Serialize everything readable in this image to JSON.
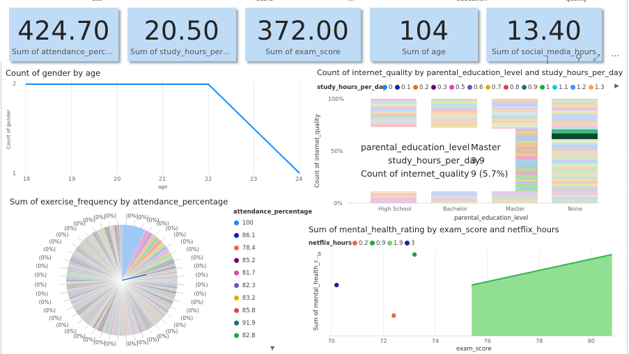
{
  "kpis": [
    {
      "value": "424.70",
      "label": "Sum of attendance_percenta..."
    },
    {
      "value": "20.50",
      "label": "Sum of study_hours_per_day"
    },
    {
      "value": "372.00",
      "label": "Sum of exam_score"
    },
    {
      "value": "104",
      "label": "Sum of age"
    },
    {
      "value": "13.40",
      "label": "Sum of social_media_hours"
    }
  ],
  "gender_chart": {
    "title": "Count of gender by age",
    "xlabel": "age",
    "ylabel": "Count of gender",
    "x_ticks": [
      "18",
      "19",
      "20",
      "21",
      "22",
      "23",
      "24"
    ],
    "y_ticks": [
      "2",
      "1"
    ]
  },
  "internet_chart": {
    "title": "Count of internet_quality by parental_education_level and study_hours_per_day",
    "legend_title": "study_hours_per_day",
    "legend": [
      {
        "label": "0",
        "color": "#118dff"
      },
      {
        "label": "0.1",
        "color": "#12239e"
      },
      {
        "label": "0.2",
        "color": "#e66c37"
      },
      {
        "label": "0.3",
        "color": "#6b007b"
      },
      {
        "label": "0.5",
        "color": "#e044a7"
      },
      {
        "label": "0.6",
        "color": "#744ec2"
      },
      {
        "label": "0.7",
        "color": "#d9b300"
      },
      {
        "label": "0.8",
        "color": "#d64550"
      },
      {
        "label": "0.9",
        "color": "#197278"
      },
      {
        "label": "1",
        "color": "#1aab40"
      },
      {
        "label": "1.1",
        "color": "#15c6f4"
      },
      {
        "label": "1.2",
        "color": "#4092ff"
      },
      {
        "label": "1.3",
        "color": "#ffa058"
      }
    ],
    "ylabel": "Count of internet_quality",
    "xlabel": "parental_education_level",
    "y_ticks": [
      "100%",
      "50%",
      "0%"
    ],
    "categories": [
      "High School",
      "Bachelor",
      "Master",
      "None"
    ],
    "tooltip": {
      "rows": [
        {
          "k": "parental_education_level",
          "v": "Master"
        },
        {
          "k": "study_hours_per_day",
          "v": "3.9"
        },
        {
          "k": "Count of internet_quality",
          "v": "9 (5.7%)"
        }
      ]
    }
  },
  "pie_chart": {
    "title": "Sum of exercise_frequency by attendance_percentage",
    "legend_title": "attendance_percentage",
    "slice_label": "(0%)",
    "legend": [
      {
        "label": "100",
        "color": "#118dff"
      },
      {
        "label": "86.1",
        "color": "#12239e"
      },
      {
        "label": "78.4",
        "color": "#e66c37"
      },
      {
        "label": "85.2",
        "color": "#6b007b"
      },
      {
        "label": "81.7",
        "color": "#e044a7"
      },
      {
        "label": "82.3",
        "color": "#744ec2"
      },
      {
        "label": "83.2",
        "color": "#d9b300"
      },
      {
        "label": "85.8",
        "color": "#d64550"
      },
      {
        "label": "91.9",
        "color": "#197278"
      },
      {
        "label": "82.8",
        "color": "#1aab40"
      }
    ]
  },
  "mental_chart": {
    "title": "Sum of mental_health_rating by exam_score and netflix_hours",
    "legend_title": "netflix_hours",
    "legend": [
      {
        "label": "0.2",
        "color": "#e66c37"
      },
      {
        "label": "0.9",
        "color": "#1aab40"
      },
      {
        "label": "1.9",
        "color": "#6bd46e"
      },
      {
        "label": "3",
        "color": "#12239e"
      }
    ],
    "ylabel": "Sum of mental_health_r...",
    "xlabel": "exam_score",
    "x_ticks": [
      "70",
      "72",
      "74",
      "76",
      "78",
      "80"
    ],
    "y_ticks": [
      "8"
    ]
  },
  "chart_data": [
    {
      "type": "line",
      "title": "Count of gender by age",
      "xlabel": "age",
      "ylabel": "Count of gender",
      "x": [
        18,
        22,
        24
      ],
      "y": [
        2,
        2,
        1
      ],
      "xlim": [
        18,
        24
      ],
      "ylim": [
        1,
        2
      ],
      "color": "#118dff"
    },
    {
      "type": "scatter",
      "title": "Sum of mental_health_rating by exam_score and netflix_hours",
      "xlabel": "exam_score",
      "ylabel": "Sum of mental_health_r...",
      "series": [
        {
          "name": "3",
          "color": "#12239e",
          "points": [
            [
              70.2,
              5
            ]
          ]
        },
        {
          "name": "0.2",
          "color": "#e66c37",
          "points": [
            [
              72.4,
              2
            ]
          ]
        },
        {
          "name": "0.9",
          "color": "#1aab40",
          "points": [
            [
              73.2,
              8
            ]
          ]
        },
        {
          "name": "1.9",
          "color": "#6bd46e",
          "area": [
            [
              75.4,
              5
            ],
            [
              80.8,
              8
            ]
          ]
        }
      ],
      "xlim": [
        69.9,
        81
      ],
      "ylim": [
        0,
        8
      ]
    }
  ],
  "top_strip": [
    "ate",
    "score",
    "...",
    "education",
    "quality"
  ]
}
